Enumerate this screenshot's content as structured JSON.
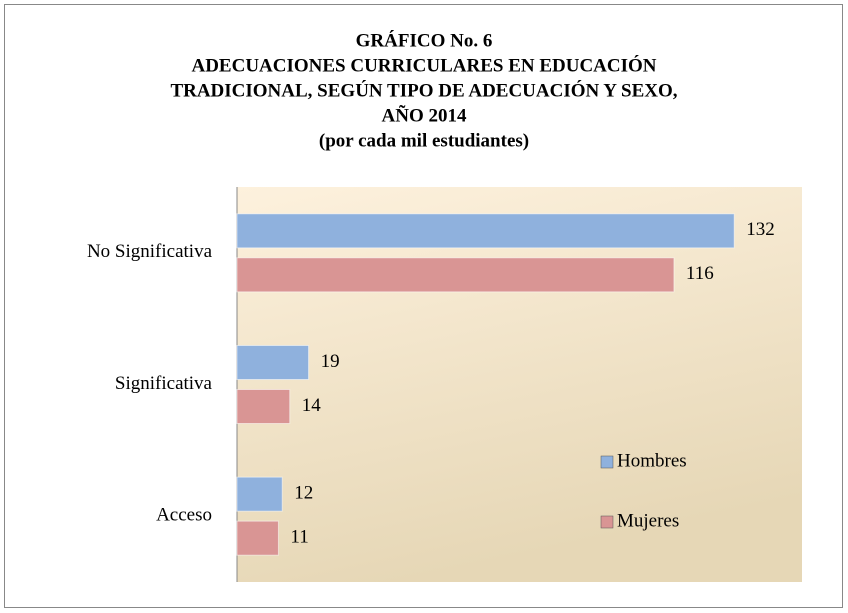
{
  "chart_data": {
    "type": "hbar",
    "title": [
      "GRÁFICO No. 6",
      "ADECUACIONES CURRICULARES EN EDUCACIÓN",
      "TRADICIONAL, SEGÚN TIPO DE ADECUACIÓN Y SEXO,",
      "AÑO 2014"
    ],
    "subtitle": "(por cada mil estudiantes)",
    "categories": [
      "No Significativa",
      "Significativa",
      "Acceso"
    ],
    "series": [
      {
        "name": "Hombres",
        "color": "#8fb1dd",
        "values": [
          132,
          19,
          12
        ]
      },
      {
        "name": "Mujeres",
        "color": "#d99594",
        "values": [
          116,
          14,
          11
        ]
      }
    ],
    "xlim": [
      0,
      150
    ],
    "legend": "right"
  }
}
